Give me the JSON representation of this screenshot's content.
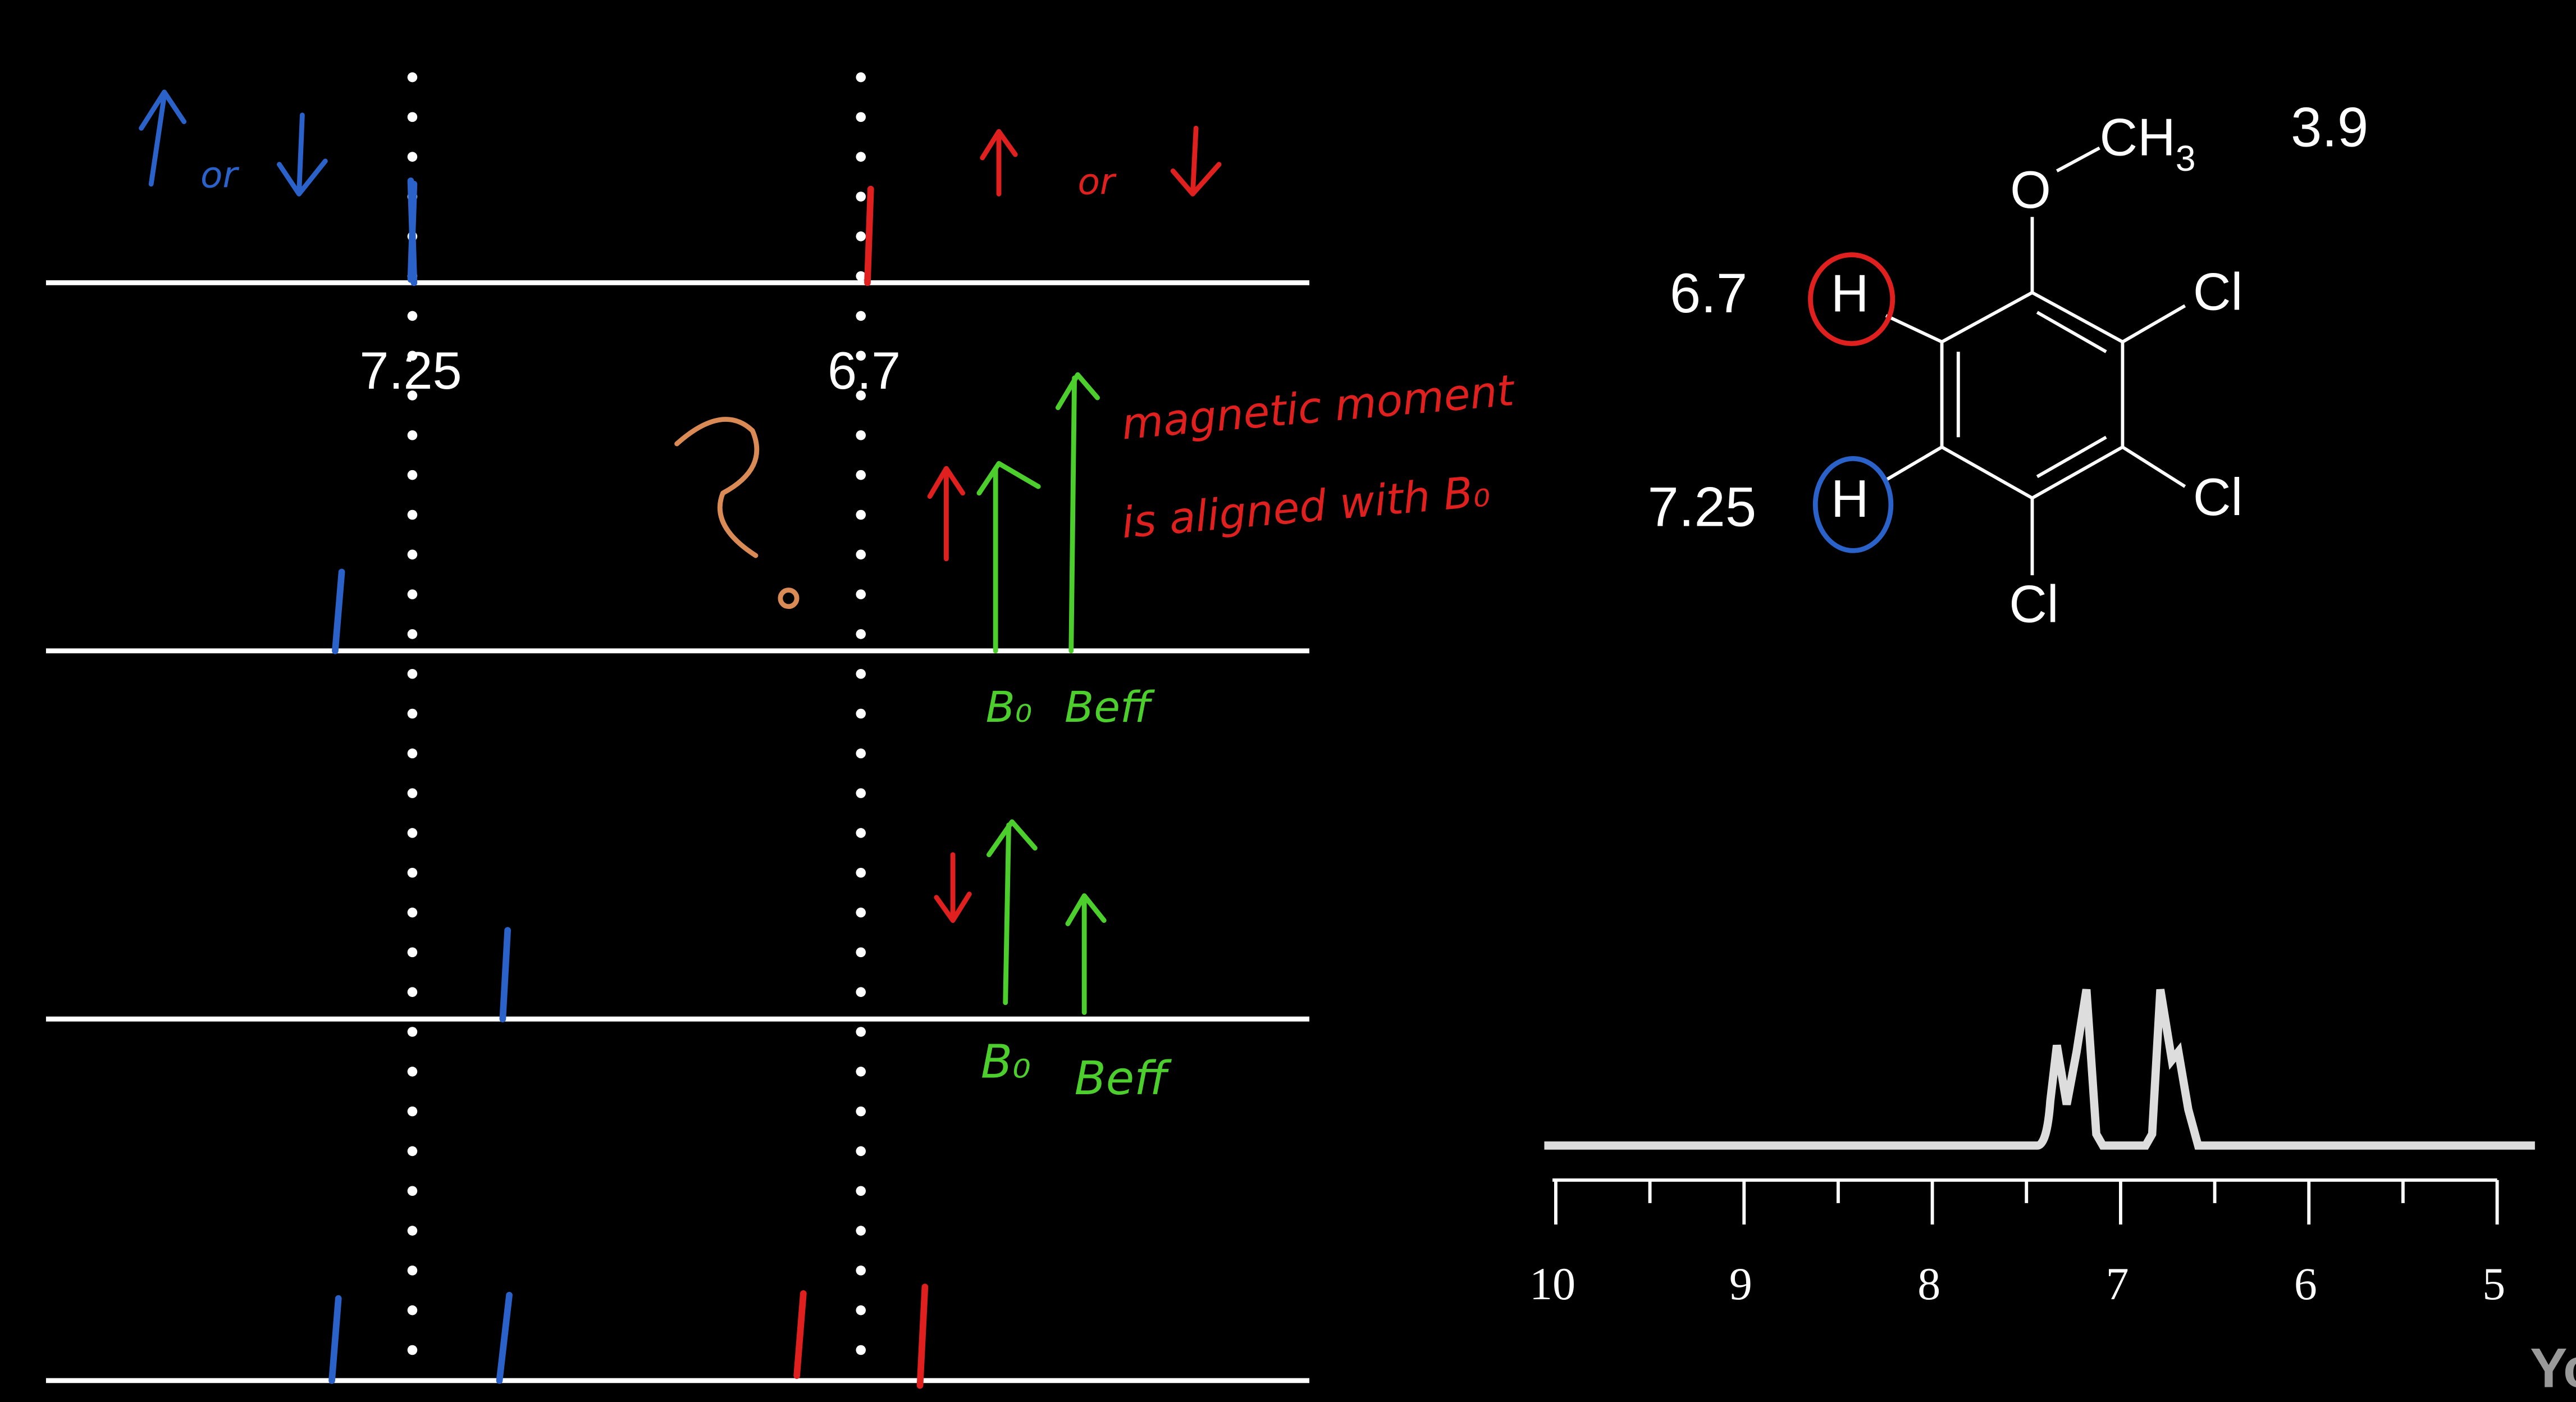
{
  "diagram": {
    "level_labels": [
      "7.25",
      "6.7"
    ],
    "notes": {
      "blue_or": "or",
      "red_or": "or",
      "question": "?",
      "moment_line1": "magnetic moment",
      "moment_line2": "is aligned with B₀",
      "field_pair_1": [
        "B₀",
        "Beff"
      ],
      "field_pair_2": [
        "B₀",
        "Beff"
      ]
    }
  },
  "molecule": {
    "oxygen": "O",
    "methyl": {
      "text": "CH",
      "subscript": "3"
    },
    "chlorines": [
      "Cl",
      "Cl",
      "Cl"
    ],
    "hydrogens": [
      "H",
      "H"
    ],
    "shift_labels": {
      "methyl": "3.9",
      "top_h": "6.7",
      "bottom_h": "7.25"
    }
  },
  "spectrum": {
    "axis_labels": [
      10,
      9,
      8,
      7,
      6,
      5
    ]
  },
  "watermark": "Yo"
}
